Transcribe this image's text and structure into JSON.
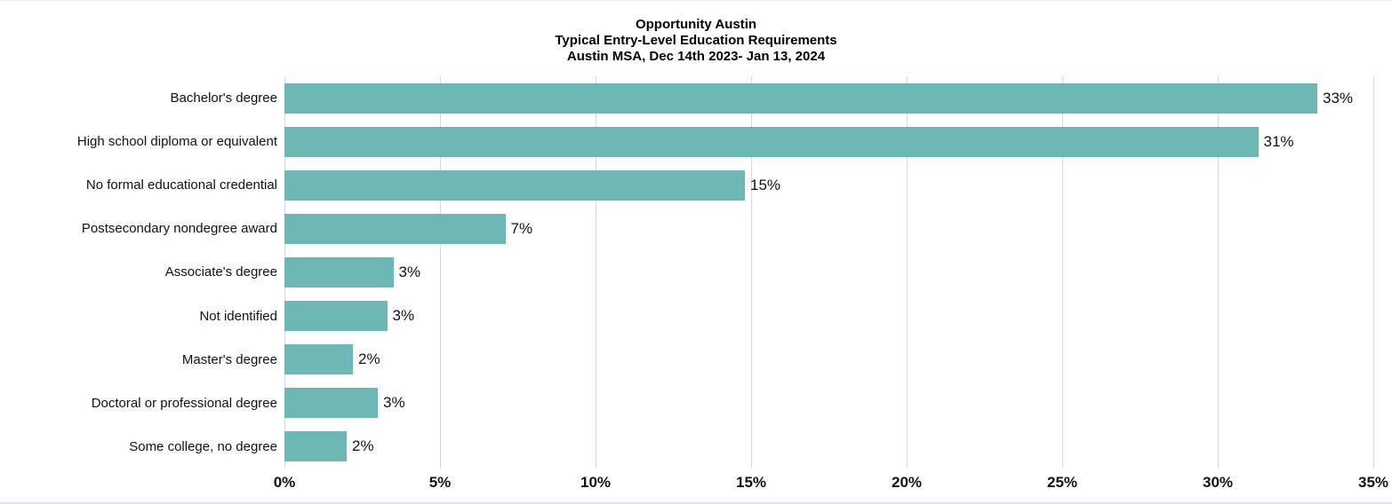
{
  "title": {
    "line1": "Opportunity Austin",
    "line2": "Typical Entry-Level Education Requirements",
    "line3": "Austin MSA, Dec 14th 2023- Jan 13, 2024"
  },
  "chart_data": {
    "type": "bar",
    "orientation": "horizontal",
    "title": "Opportunity Austin",
    "subtitle": "Typical Entry-Level Education Requirements",
    "caption": "Austin MSA, Dec 14th 2023- Jan 13, 2024",
    "categories": [
      "Bachelor's degree",
      "High school diploma or equivalent",
      "No formal educational credential",
      "Postsecondary nondegree award",
      "Associate's degree",
      "Not identified",
      "Master's degree",
      "Doctoral or professional degree",
      "Some college, no degree"
    ],
    "values": [
      33.2,
      31.3,
      14.8,
      7.1,
      3.5,
      3.3,
      2.2,
      3.0,
      2.0
    ],
    "value_labels": [
      "33%",
      "31%",
      "15%",
      "7%",
      "3%",
      "3%",
      "2%",
      "3%",
      "2%"
    ],
    "x_ticks": [
      "0%",
      "5%",
      "10%",
      "15%",
      "20%",
      "25%",
      "30%",
      "35%"
    ],
    "x_tick_values": [
      0,
      5,
      10,
      15,
      20,
      25,
      30,
      35
    ],
    "xlim": [
      0,
      35
    ],
    "xlabel": "",
    "ylabel": "",
    "legend": "none",
    "grid": "vertical-only",
    "value_label_position": "outside-end",
    "bar_color": "#6db7b4",
    "gridline_color": "#d8d8d8",
    "text_color": "#111111"
  }
}
